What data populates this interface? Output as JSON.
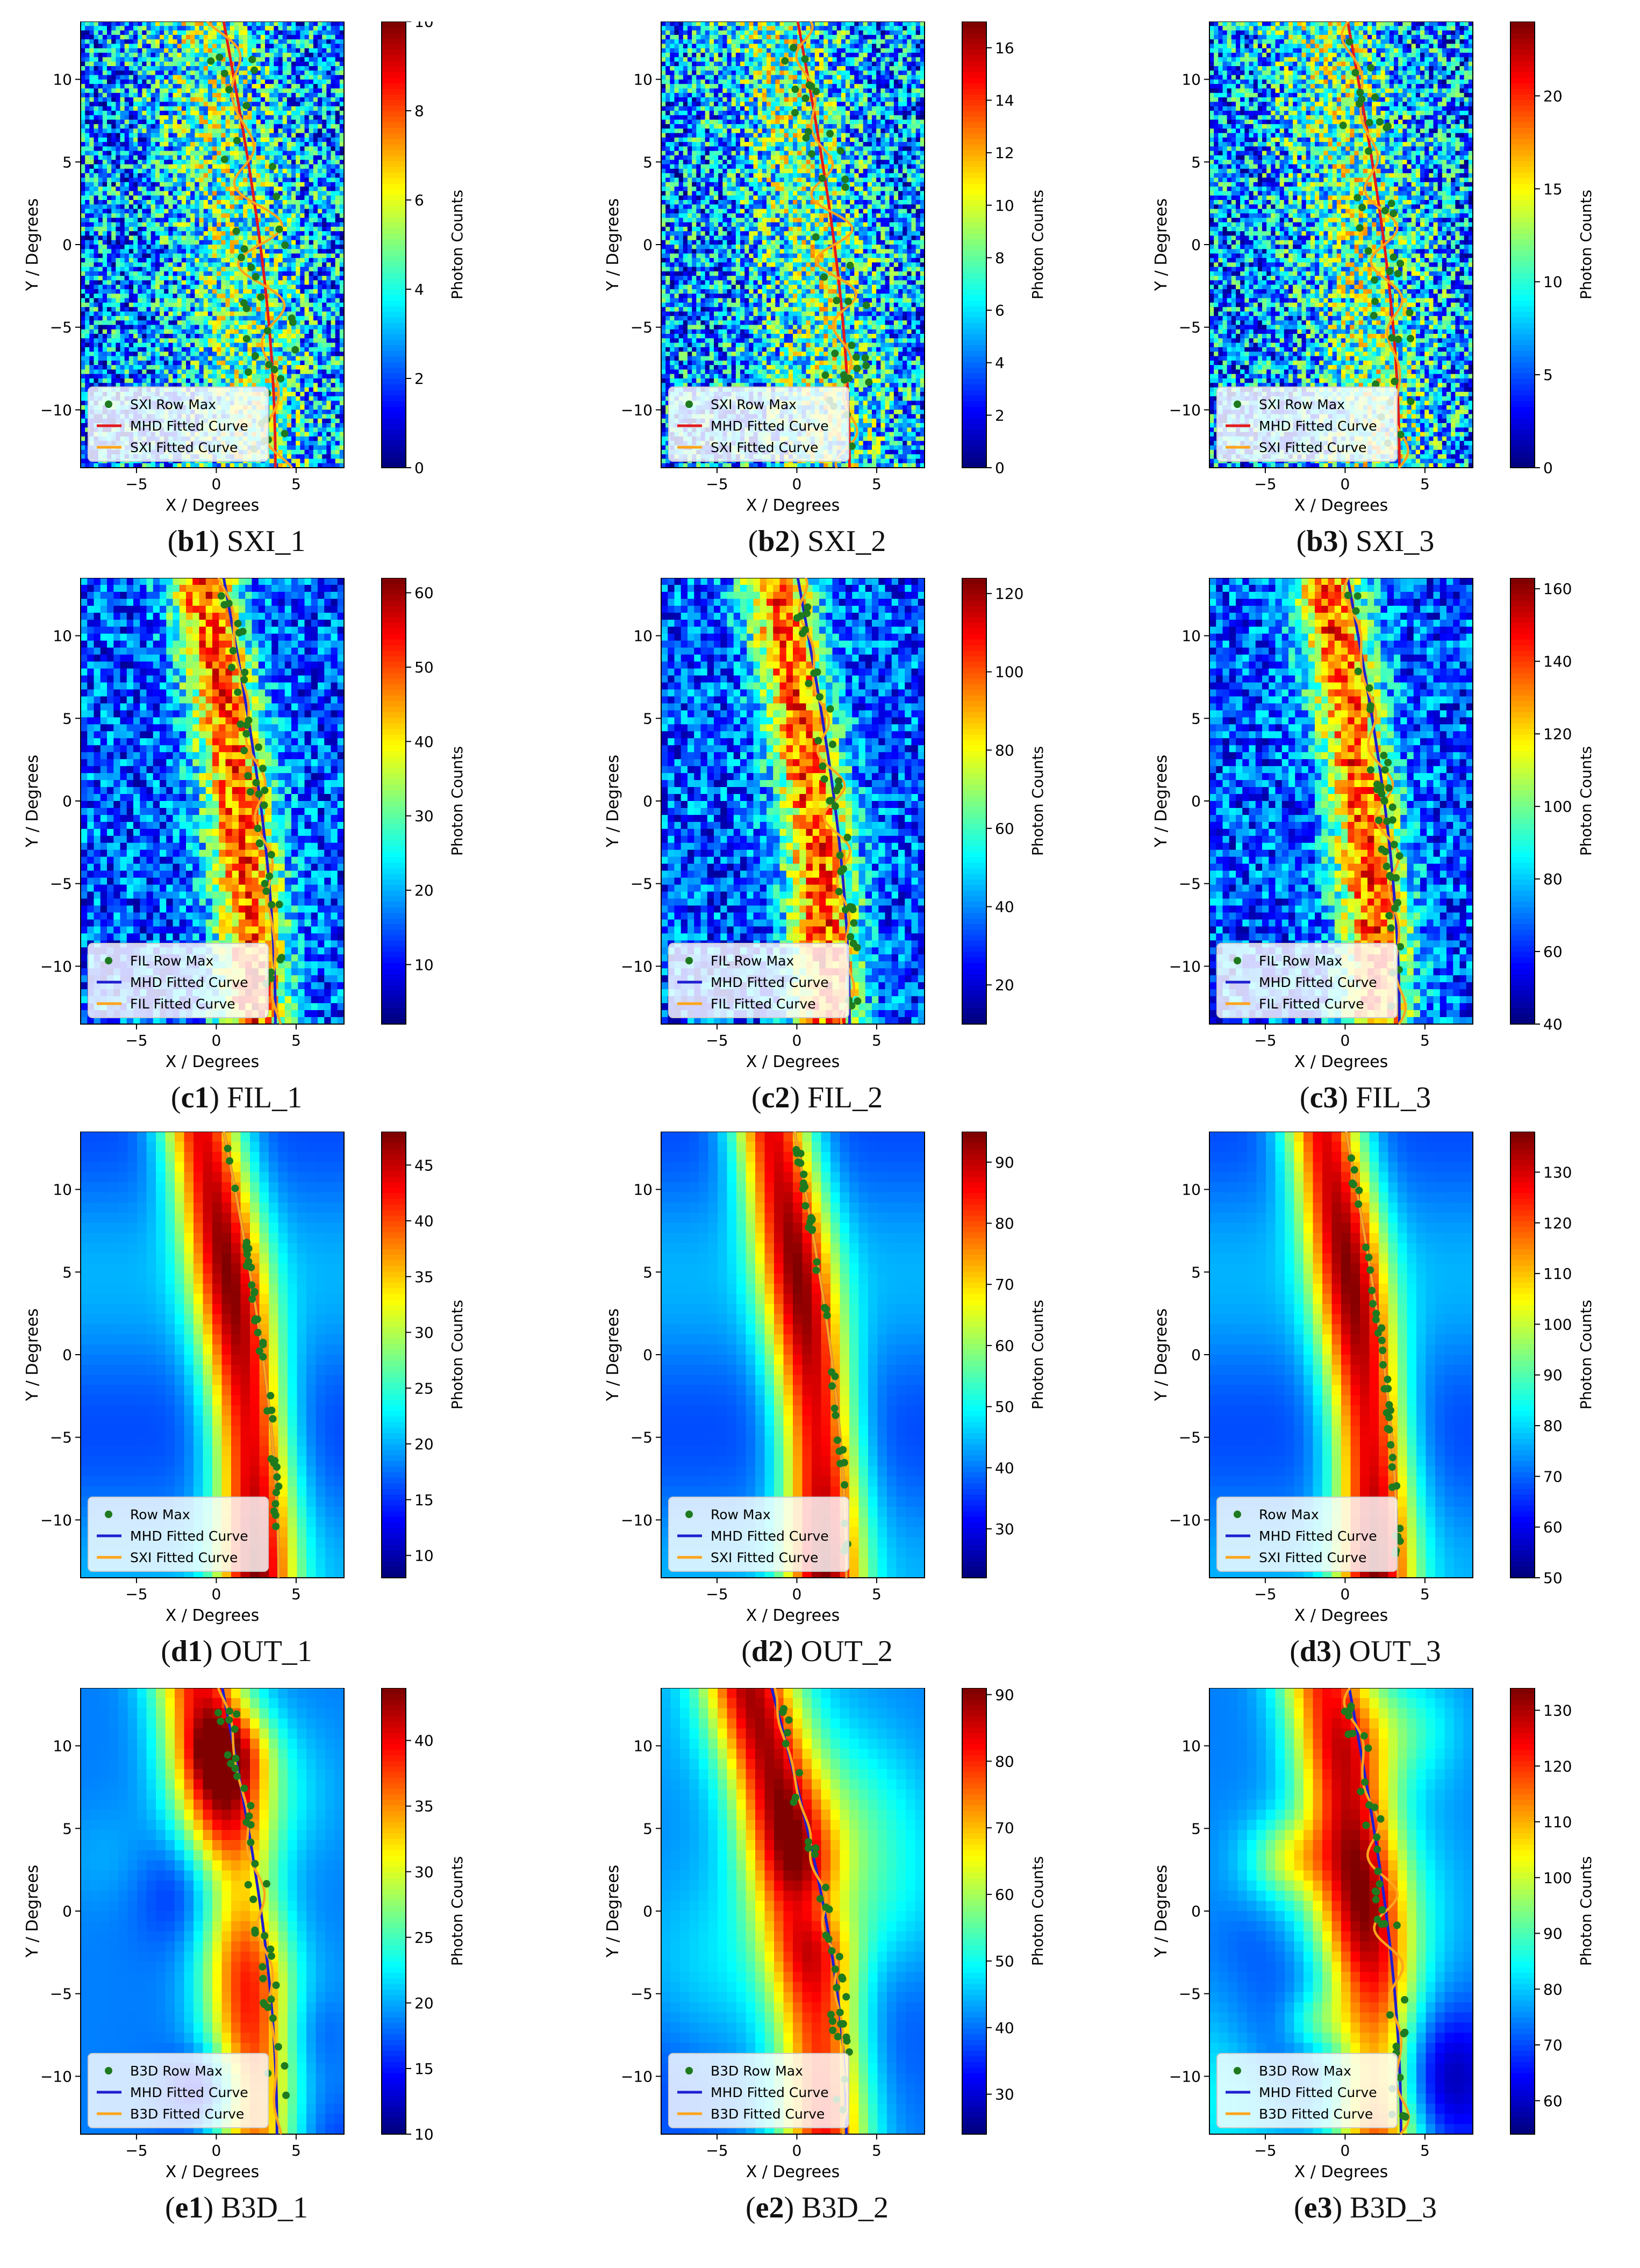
{
  "figure": {
    "x_label": "X / Degrees",
    "y_label": "Y / Degrees",
    "colorbar_label": "Photon Counts",
    "x_ticks": [
      -5,
      0,
      5
    ],
    "y_ticks": [
      -10,
      -5,
      0,
      5,
      10
    ],
    "xlim": [
      -8.5,
      8
    ],
    "ylim": [
      -13.5,
      13.5
    ]
  },
  "chart_data": [
    {
      "id": "b1",
      "letter": "b",
      "num": "1",
      "name": "SXI_1",
      "type": "heatmap",
      "style": "noisy",
      "seed": 11,
      "colorbar": {
        "min": 0,
        "max": 10,
        "ticks": [
          0,
          2,
          4,
          6,
          8,
          10
        ]
      },
      "legend": [
        "SXI Row Max",
        "MHD Fitted Curve",
        "SXI Fitted Curve"
      ],
      "mhd_color": "#e41a1c",
      "curve_shift": 3.7,
      "bend": 3.6,
      "wiggle": 1.6
    },
    {
      "id": "b2",
      "letter": "b",
      "num": "2",
      "name": "SXI_2",
      "type": "heatmap",
      "style": "noisy",
      "seed": 23,
      "colorbar": {
        "min": 0,
        "max": 17,
        "ticks": [
          0,
          2,
          4,
          6,
          8,
          10,
          12,
          14,
          16
        ]
      },
      "legend": [
        "SXI Row Max",
        "MHD Fitted Curve",
        "SXI Fitted Curve"
      ],
      "mhd_color": "#e41a1c",
      "curve_shift": 3.3,
      "bend": 3.6,
      "wiggle": 1.3
    },
    {
      "id": "b3",
      "letter": "b",
      "num": "3",
      "name": "SXI_3",
      "type": "heatmap",
      "style": "noisy",
      "seed": 37,
      "colorbar": {
        "min": 0,
        "max": 24,
        "ticks": [
          0,
          5,
          10,
          15,
          20
        ]
      },
      "legend": [
        "SXI Row Max",
        "MHD Fitted Curve",
        "SXI Fitted Curve"
      ],
      "mhd_color": "#e41a1c",
      "curve_shift": 3.4,
      "bend": 3.6,
      "wiggle": 1.0
    },
    {
      "id": "c1",
      "letter": "c",
      "num": "1",
      "name": "FIL_1",
      "type": "heatmap",
      "style": "ridge",
      "seed": 41,
      "colorbar": {
        "min": 2,
        "max": 62,
        "ticks": [
          10,
          20,
          30,
          40,
          50,
          60
        ]
      },
      "legend": [
        "FIL Row Max",
        "MHD Fitted Curve",
        "FIL Fitted Curve"
      ],
      "mhd_color": "#1f1fd0",
      "curve_shift": 3.7,
      "bend": 3.6,
      "wiggle": 0.5
    },
    {
      "id": "c2",
      "letter": "c",
      "num": "2",
      "name": "FIL_2",
      "type": "heatmap",
      "style": "ridge",
      "seed": 53,
      "colorbar": {
        "min": 10,
        "max": 124,
        "ticks": [
          20,
          40,
          60,
          80,
          100,
          120
        ]
      },
      "legend": [
        "FIL Row Max",
        "MHD Fitted Curve",
        "FIL Fitted Curve"
      ],
      "mhd_color": "#1f1fd0",
      "curve_shift": 3.3,
      "bend": 3.6,
      "wiggle": 0.8
    },
    {
      "id": "c3",
      "letter": "c",
      "num": "3",
      "name": "FIL_3",
      "type": "heatmap",
      "style": "ridge",
      "seed": 67,
      "colorbar": {
        "min": 40,
        "max": 163,
        "ticks": [
          40,
          60,
          80,
          100,
          120,
          140,
          160
        ]
      },
      "legend": [
        "FIL Row Max",
        "MHD Fitted Curve",
        "FIL Fitted Curve"
      ],
      "mhd_color": "#1f1fd0",
      "curve_shift": 3.4,
      "bend": 3.6,
      "wiggle": 0.7
    },
    {
      "id": "d1",
      "letter": "d",
      "num": "1",
      "name": "OUT_1",
      "type": "heatmap",
      "style": "smooth",
      "seed": 71,
      "colorbar": {
        "min": 8,
        "max": 48,
        "ticks": [
          10,
          15,
          20,
          25,
          30,
          35,
          40,
          45
        ]
      },
      "legend": [
        "Row Max",
        "MHD Fitted Curve",
        "SXI Fitted Curve"
      ],
      "mhd_color": "#1f1fd0",
      "curve_shift": 3.9,
      "bend": 3.8,
      "wiggle": 0.0
    },
    {
      "id": "d2",
      "letter": "d",
      "num": "2",
      "name": "OUT_2",
      "type": "heatmap",
      "style": "smooth",
      "seed": 83,
      "colorbar": {
        "min": 22,
        "max": 95,
        "ticks": [
          30,
          40,
          50,
          60,
          70,
          80,
          90
        ]
      },
      "legend": [
        "Row Max",
        "MHD Fitted Curve",
        "SXI Fitted Curve"
      ],
      "mhd_color": "#1f1fd0",
      "curve_shift": 3.1,
      "bend": 3.6,
      "wiggle": 0.0
    },
    {
      "id": "d3",
      "letter": "d",
      "num": "3",
      "name": "OUT_3",
      "type": "heatmap",
      "style": "smooth",
      "seed": 97,
      "colorbar": {
        "min": 50,
        "max": 138,
        "ticks": [
          50,
          60,
          70,
          80,
          90,
          100,
          110,
          120,
          130
        ]
      },
      "legend": [
        "Row Max",
        "MHD Fitted Curve",
        "SXI Fitted Curve"
      ],
      "mhd_color": "#1f1fd0",
      "curve_shift": 3.3,
      "bend": 3.6,
      "wiggle": 0.0
    },
    {
      "id": "e1",
      "letter": "e",
      "num": "1",
      "name": "B3D_1",
      "type": "heatmap",
      "style": "blobby",
      "seed": 101,
      "colorbar": {
        "min": 10,
        "max": 44,
        "ticks": [
          10,
          15,
          20,
          25,
          30,
          35,
          40
        ]
      },
      "legend": [
        "B3D Row Max",
        "MHD Fitted Curve",
        "B3D Fitted Curve"
      ],
      "mhd_color": "#1f1fd0",
      "curve_shift": 3.8,
      "bend": 3.8,
      "wiggle": 0.4
    },
    {
      "id": "e2",
      "letter": "e",
      "num": "2",
      "name": "B3D_2",
      "type": "heatmap",
      "style": "blobby",
      "seed": 113,
      "colorbar": {
        "min": 24,
        "max": 91,
        "ticks": [
          30,
          40,
          50,
          60,
          70,
          80,
          90
        ]
      },
      "legend": [
        "B3D Row Max",
        "MHD Fitted Curve",
        "B3D Fitted Curve"
      ],
      "mhd_color": "#1f1fd0",
      "curve_shift": 3.1,
      "bend": 5.2,
      "wiggle": 0.3
    },
    {
      "id": "e3",
      "letter": "e",
      "num": "3",
      "name": "B3D_3",
      "type": "heatmap",
      "style": "blobby",
      "seed": 127,
      "colorbar": {
        "min": 54,
        "max": 134,
        "ticks": [
          60,
          70,
          80,
          90,
          100,
          110,
          120,
          130
        ]
      },
      "legend": [
        "B3D Row Max",
        "MHD Fitted Curve",
        "B3D Fitted Curve"
      ],
      "mhd_color": "#1f1fd0",
      "curve_shift": 3.5,
      "bend": 3.6,
      "wiggle": 0.9
    }
  ]
}
